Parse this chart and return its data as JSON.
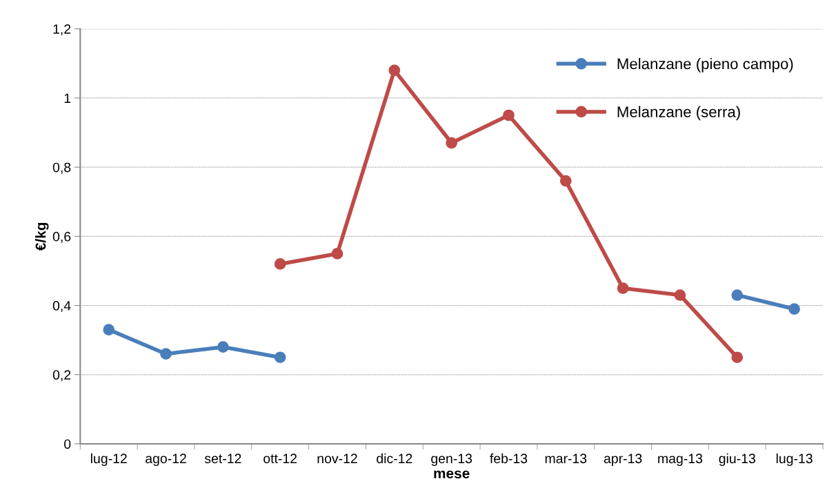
{
  "chart_data": {
    "type": "line",
    "xlabel": "mese",
    "ylabel": "€/kg",
    "categories": [
      "lug-12",
      "ago-12",
      "set-12",
      "ott-12",
      "nov-12",
      "dic-12",
      "gen-13",
      "feb-13",
      "mar-13",
      "apr-13",
      "mag-13",
      "giu-13",
      "lug-13"
    ],
    "series": [
      {
        "name": "Melanzane (pieno campo)",
        "color": "#4a7ebb",
        "values": [
          0.33,
          0.26,
          0.28,
          0.25,
          null,
          null,
          null,
          null,
          null,
          null,
          null,
          0.43,
          0.39
        ]
      },
      {
        "name": "Melanzane (serra)",
        "color": "#be4b48",
        "values": [
          null,
          null,
          null,
          0.52,
          0.55,
          1.08,
          0.87,
          0.95,
          0.76,
          0.45,
          0.43,
          0.25,
          null
        ]
      }
    ],
    "ylim": [
      0,
      1.2
    ],
    "yticks": [
      0,
      {
        "value": 0.2,
        "label": "0,2"
      },
      {
        "value": 0.4,
        "label": "0,4"
      },
      {
        "value": 0.6,
        "label": "0,6"
      },
      {
        "value": 0.8,
        "label": "0,8"
      },
      1,
      {
        "value": 1.2,
        "label": "1,2"
      }
    ],
    "grid": "y",
    "legend": "top right",
    "marker": "circle",
    "line_style": "solid"
  }
}
